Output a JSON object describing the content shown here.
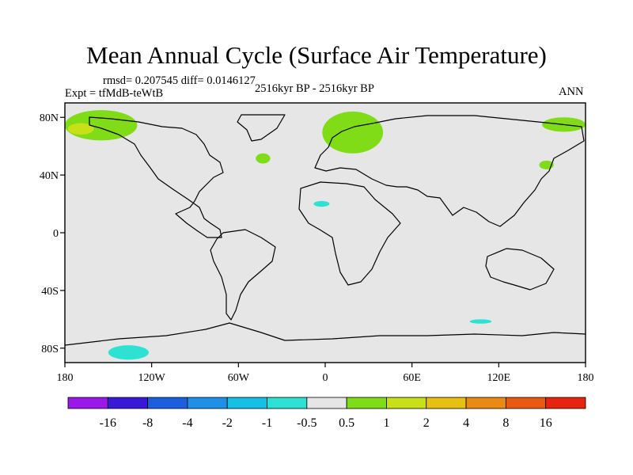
{
  "chart_data": {
    "type": "heatmap",
    "title": "Mean Annual Cycle (Surface Air Temperature)",
    "stats": "rmsd= 0.207545 diff= 0.0146127",
    "experiment": "Expt = tfMdB-teWtB",
    "period": "2516kyr BP - 2516kyr BP",
    "season": "ANN",
    "x_ticks": [
      "180",
      "120W",
      "60W",
      "0",
      "60E",
      "120E",
      "180"
    ],
    "x_tick_values": [
      -180,
      -120,
      -60,
      0,
      60,
      120,
      180
    ],
    "y_ticks": [
      "80N",
      "40N",
      "0",
      "40S",
      "80S"
    ],
    "y_tick_values": [
      80,
      40,
      0,
      -40,
      -80
    ],
    "xlim": [
      -180,
      180
    ],
    "ylim": [
      -90,
      90
    ],
    "colorbar": {
      "levels": [
        "-16",
        "-8",
        "-4",
        "-2",
        "-1",
        "-0.5",
        "0.5",
        "1",
        "2",
        "4",
        "8",
        "16"
      ],
      "colors": [
        "#9a19e8",
        "#3a18d8",
        "#1b5fe0",
        "#1e90e8",
        "#14c0e6",
        "#2de2d2",
        "#e6e6e6",
        "#7fdc16",
        "#c8e018",
        "#e8c012",
        "#e88a14",
        "#e85a14",
        "#e62410"
      ]
    },
    "ocean_fill": "#e6e6e6",
    "anomaly_regions": [
      {
        "name": "arctic-north-america",
        "category": "0.5 to 1",
        "color": "#7fdc16",
        "lon": [
          -180,
          -130
        ],
        "lat": [
          64,
          85
        ]
      },
      {
        "name": "siberia-beringia",
        "category": "1 to 2",
        "color": "#c8e018",
        "lon": [
          -178,
          -160
        ],
        "lat": [
          68,
          76
        ]
      },
      {
        "name": "barents-sea",
        "category": "0.5 to 1",
        "color": "#7fdc16",
        "lon": [
          -2,
          40
        ],
        "lat": [
          55,
          84
        ]
      },
      {
        "name": "arctic-east",
        "category": "0.5 to 1",
        "color": "#7fdc16",
        "lon": [
          150,
          180
        ],
        "lat": [
          70,
          80
        ]
      },
      {
        "name": "north-atlantic-patch",
        "category": "0.5 to 1",
        "color": "#7fdc16",
        "lon": [
          -48,
          -38
        ],
        "lat": [
          48,
          55
        ]
      },
      {
        "name": "north-pacific-east",
        "category": "0.5 to 1",
        "color": "#7fdc16",
        "lon": [
          148,
          158
        ],
        "lat": [
          44,
          50
        ]
      },
      {
        "name": "sahara-patch",
        "category": "-1 to -0.5",
        "color": "#2de2d2",
        "lon": [
          -8,
          3
        ],
        "lat": [
          18,
          22
        ]
      },
      {
        "name": "southern-ocean-south-pacific",
        "category": "-1 to -0.5",
        "color": "#2de2d2",
        "lon": [
          -150,
          -122
        ],
        "lat": [
          -88,
          -78
        ]
      },
      {
        "name": "southern-ocean-indian",
        "category": "-1 to -0.5",
        "color": "#2de2d2",
        "lon": [
          100,
          115
        ],
        "lat": [
          -63,
          -60
        ]
      }
    ]
  }
}
